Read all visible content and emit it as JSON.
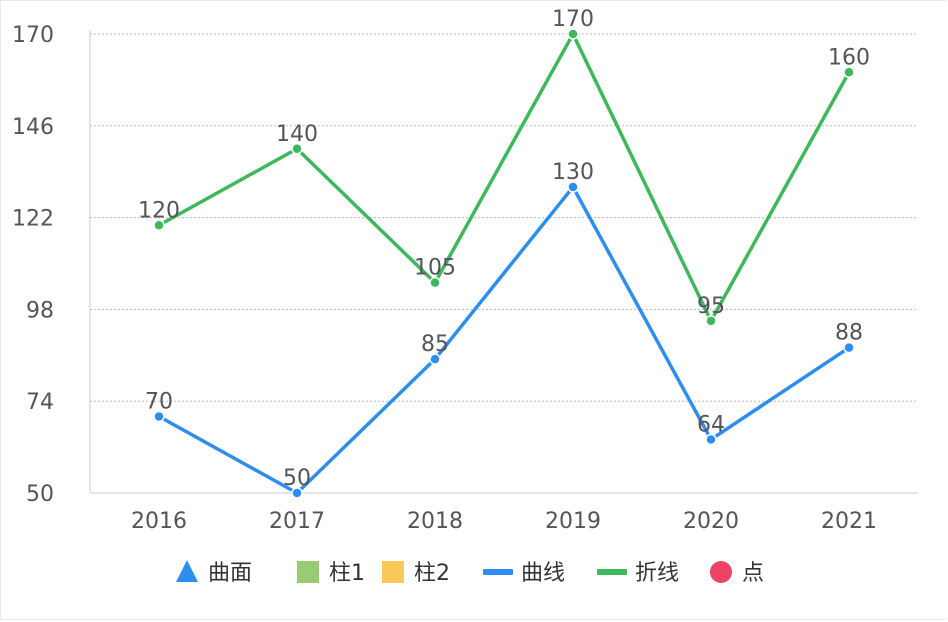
{
  "chart_data": {
    "type": "line",
    "categories": [
      "2016",
      "2017",
      "2018",
      "2019",
      "2020",
      "2021"
    ],
    "y_ticks": [
      "50",
      "74",
      "98",
      "122",
      "146",
      "170"
    ],
    "ylim": [
      50,
      170
    ],
    "grid": true,
    "legend_position": "bottom",
    "series": [
      {
        "name": "曲线",
        "color": "#2E8EF0",
        "values": [
          70,
          50,
          85,
          130,
          64,
          88
        ],
        "labels": [
          "70",
          "50",
          "85",
          "130",
          "64",
          "88"
        ]
      },
      {
        "name": "折线",
        "color": "#3DB85A",
        "values": [
          120,
          140,
          105,
          170,
          95,
          160
        ],
        "labels": [
          "120",
          "140",
          "105",
          "170",
          "95",
          "160"
        ]
      }
    ],
    "legend": [
      {
        "name": "曲面",
        "color": "#2E8EF0",
        "icon": "triangle-icon"
      },
      {
        "name": "柱1",
        "color": "#97CB74",
        "icon": "square-icon"
      },
      {
        "name": "柱2",
        "color": "#FAC858",
        "icon": "square-icon"
      },
      {
        "name": "曲线",
        "color": "#2E8EF0",
        "icon": "line-icon"
      },
      {
        "name": "折线",
        "color": "#3DB85A",
        "icon": "line-icon"
      },
      {
        "name": "点",
        "color": "#EE4266",
        "icon": "circle-icon"
      }
    ]
  }
}
